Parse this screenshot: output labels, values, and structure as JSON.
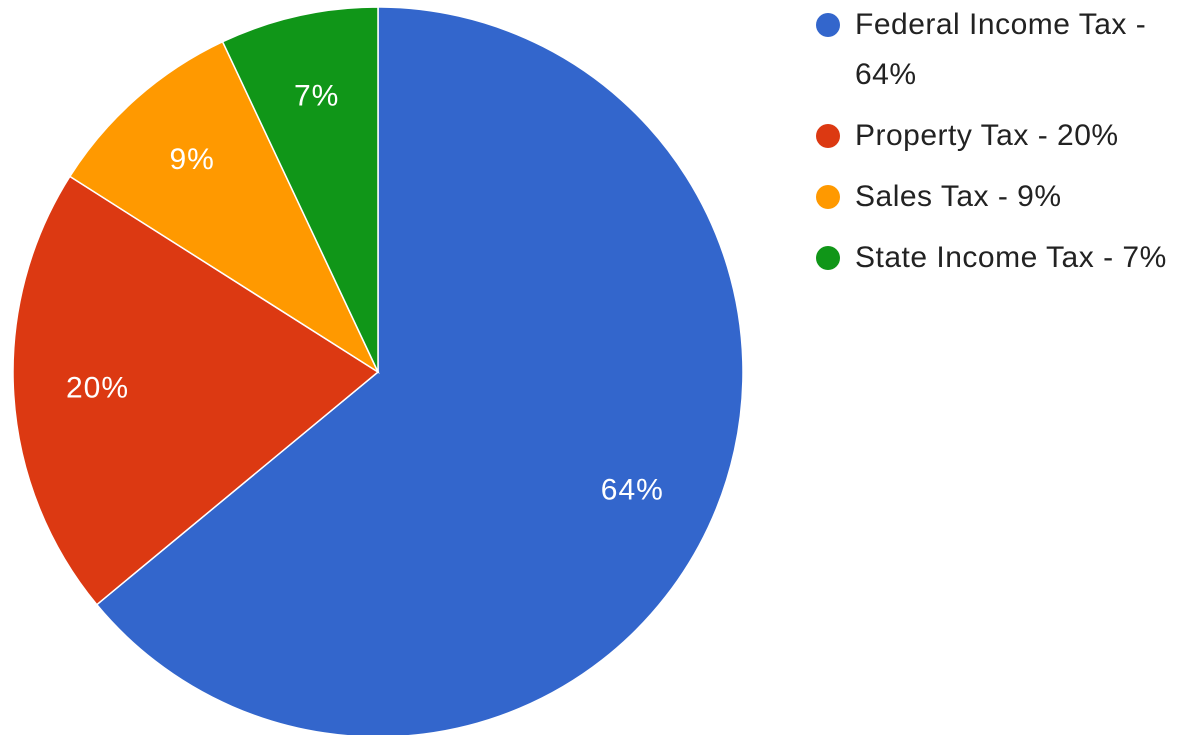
{
  "chart_data": {
    "type": "pie",
    "categories": [
      "Federal Income Tax - 64%",
      "Property Tax - 20%",
      "Sales Tax - 9%",
      "State Income Tax - 7%"
    ],
    "values": [
      64,
      20,
      9,
      7
    ],
    "value_labels": [
      "64%",
      "20%",
      "9%",
      "7%"
    ],
    "colors": [
      "#3366cc",
      "#dc3912",
      "#ff9900",
      "#109618"
    ],
    "legend": "right"
  }
}
